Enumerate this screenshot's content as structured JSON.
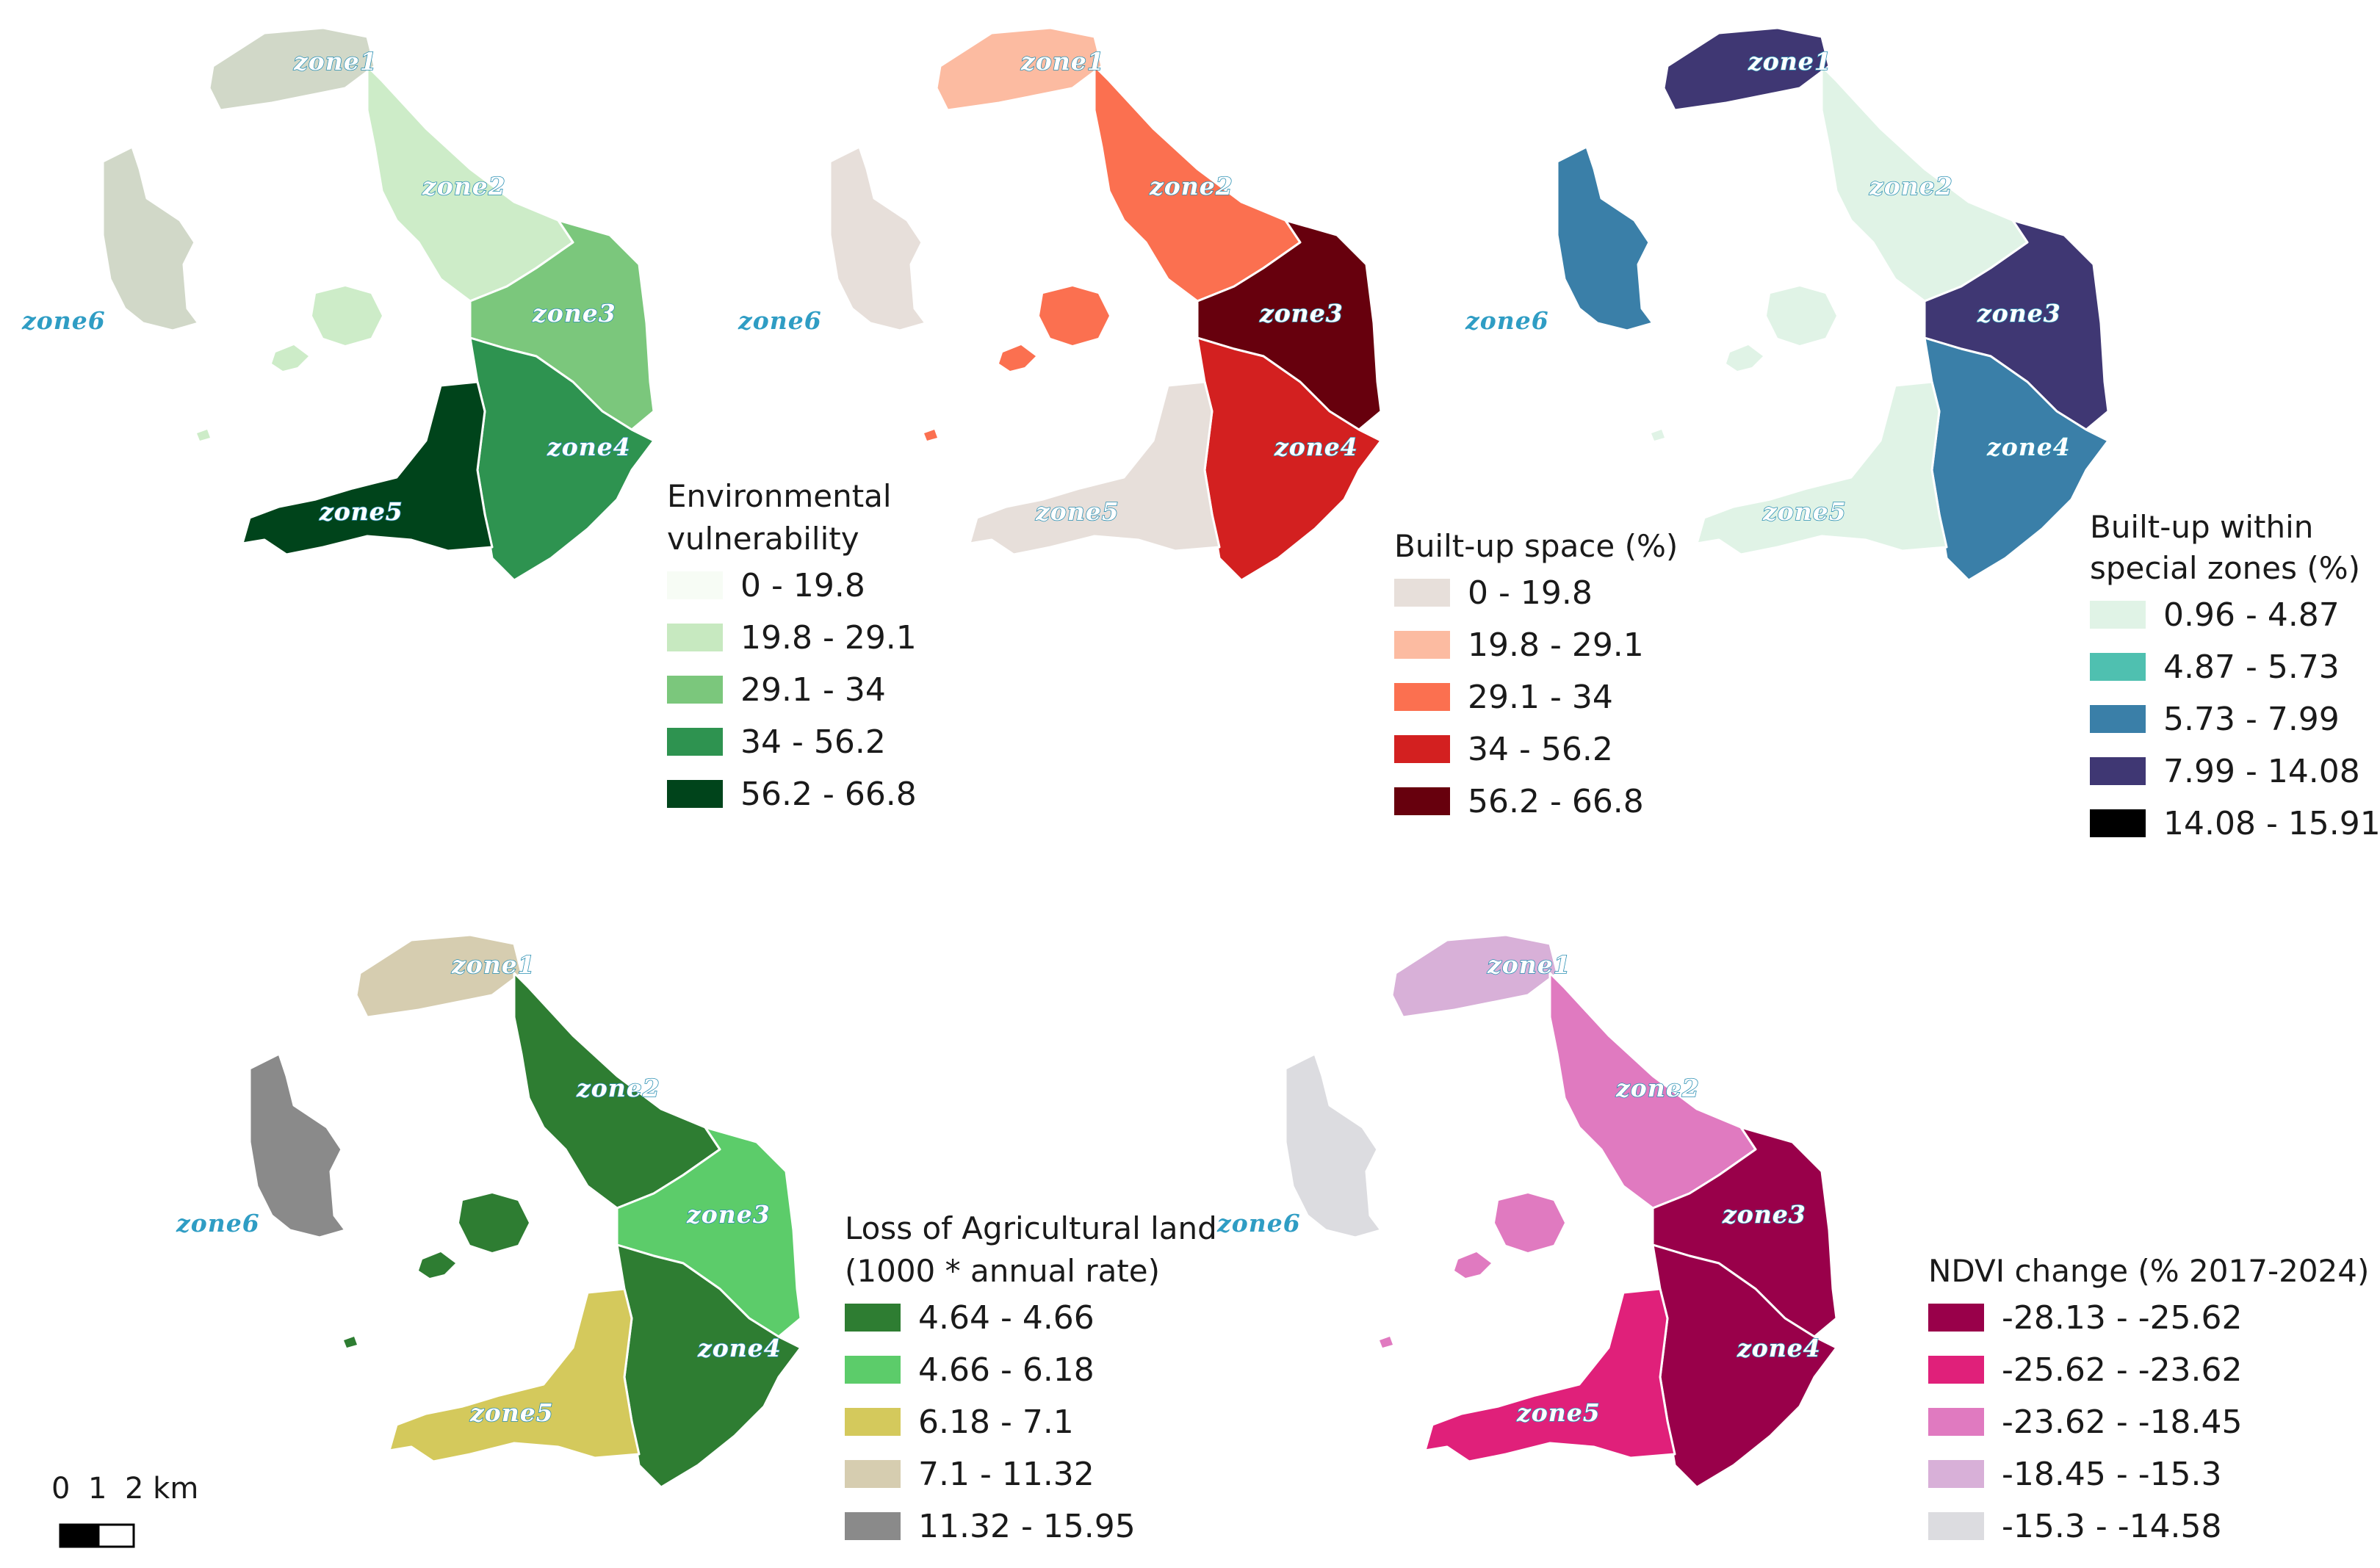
{
  "maps": [
    {
      "id": "env",
      "legend_title_lines": [
        "Environmental",
        "vulnerability"
      ],
      "legend": [
        {
          "label": "0 - 19.8",
          "color": "#f7fcf5"
        },
        {
          "label": "19.8 - 29.1",
          "color": "#c7e9c0"
        },
        {
          "label": "29.1 - 34",
          "color": "#7bc77c"
        },
        {
          "label": "34 - 56.2",
          "color": "#2e9350"
        },
        {
          "label": "56.2 - 66.8",
          "color": "#00441b"
        }
      ],
      "zones": [
        {
          "name": "zone1",
          "color": "#d1d8c8"
        },
        {
          "name": "zone2",
          "color": "#cdecc8"
        },
        {
          "name": "zone3",
          "color": "#7bc77c"
        },
        {
          "name": "zone4",
          "color": "#2e9350"
        },
        {
          "name": "zone5",
          "color": "#00441b"
        },
        {
          "name": "zone6",
          "color": "#d1d8c8"
        }
      ],
      "caldera_islands_color": "#cdecc8"
    },
    {
      "id": "builtup",
      "legend_title_lines": [
        "Built-up space (%)"
      ],
      "legend": [
        {
          "label": "0 - 19.8",
          "color": "#e7dfda"
        },
        {
          "label": "19.8 - 29.1",
          "color": "#fcbba1"
        },
        {
          "label": "29.1 - 34",
          "color": "#fb7050"
        },
        {
          "label": "34 - 56.2",
          "color": "#d32020"
        },
        {
          "label": "56.2 - 66.8",
          "color": "#67000d"
        }
      ],
      "zones": [
        {
          "name": "zone1",
          "color": "#fcbba1"
        },
        {
          "name": "zone2",
          "color": "#fb7050"
        },
        {
          "name": "zone3",
          "color": "#67000d"
        },
        {
          "name": "zone4",
          "color": "#d32020"
        },
        {
          "name": "zone5",
          "color": "#e7dfda"
        },
        {
          "name": "zone6",
          "color": "#e7dfda"
        }
      ],
      "caldera_islands_color": "#fb7050"
    },
    {
      "id": "special",
      "legend_title_lines": [
        "Built-up within",
        "special zones (%)"
      ],
      "legend": [
        {
          "label": "0.96 - 4.87",
          "color": "#e0f3e6"
        },
        {
          "label": "4.87 - 5.73",
          "color": "#4fc0b0"
        },
        {
          "label": "5.73 - 7.99",
          "color": "#3a7fa8"
        },
        {
          "label": "7.99 - 14.08",
          "color": "#3f3773"
        },
        {
          "label": "14.08 - 15.91",
          "color": "#000000"
        }
      ],
      "zones": [
        {
          "name": "zone1",
          "color": "#3f3773"
        },
        {
          "name": "zone2",
          "color": "#e0f3e6"
        },
        {
          "name": "zone3",
          "color": "#3f3773"
        },
        {
          "name": "zone4",
          "color": "#3a7fa8"
        },
        {
          "name": "zone5",
          "color": "#e0f3e6"
        },
        {
          "name": "zone6",
          "color": "#3a7fa8"
        }
      ],
      "caldera_islands_color": "#e0f3e6"
    },
    {
      "id": "agri",
      "legend_title_lines": [
        "Loss of Agricultural land",
        "(1000 * annual rate)"
      ],
      "legend": [
        {
          "label": "4.64 - 4.66",
          "color": "#2e7d32"
        },
        {
          "label": "4.66 - 6.18",
          "color": "#5ccc6a"
        },
        {
          "label": "6.18 - 7.1",
          "color": "#d4c95c"
        },
        {
          "label": "7.1 - 11.32",
          "color": "#d6cdb0"
        },
        {
          "label": "11.32 - 15.95",
          "color": "#8a8a8a"
        }
      ],
      "zones": [
        {
          "name": "zone1",
          "color": "#d6cdb0"
        },
        {
          "name": "zone2",
          "color": "#2e7d32"
        },
        {
          "name": "zone3",
          "color": "#5ccc6a"
        },
        {
          "name": "zone4",
          "color": "#2e7d32"
        },
        {
          "name": "zone5",
          "color": "#d4c95c"
        },
        {
          "name": "zone6",
          "color": "#8a8a8a"
        }
      ],
      "caldera_islands_color": "#2e7d32"
    },
    {
      "id": "ndvi",
      "legend_title_lines": [
        "NDVI change (% 2017-2024)"
      ],
      "legend": [
        {
          "label": "-28.13 - -25.62",
          "color": "#99004a"
        },
        {
          "label": "-25.62 - -23.62",
          "color": "#e0207a"
        },
        {
          "label": "-23.62 - -18.45",
          "color": "#e07ac0"
        },
        {
          "label": "-18.45 - -15.3",
          "color": "#d8b0d8"
        },
        {
          "label": "-15.3 - -14.58",
          "color": "#dcdce0"
        }
      ],
      "zones": [
        {
          "name": "zone1",
          "color": "#d8b0d8"
        },
        {
          "name": "zone2",
          "color": "#e07ac0"
        },
        {
          "name": "zone3",
          "color": "#99004a"
        },
        {
          "name": "zone4",
          "color": "#99004a"
        },
        {
          "name": "zone5",
          "color": "#e0207a"
        },
        {
          "name": "zone6",
          "color": "#dcdce0"
        }
      ],
      "caldera_islands_color": "#e07ac0"
    }
  ],
  "scale_bar": {
    "labels": [
      "0",
      "1",
      "2 km"
    ]
  }
}
